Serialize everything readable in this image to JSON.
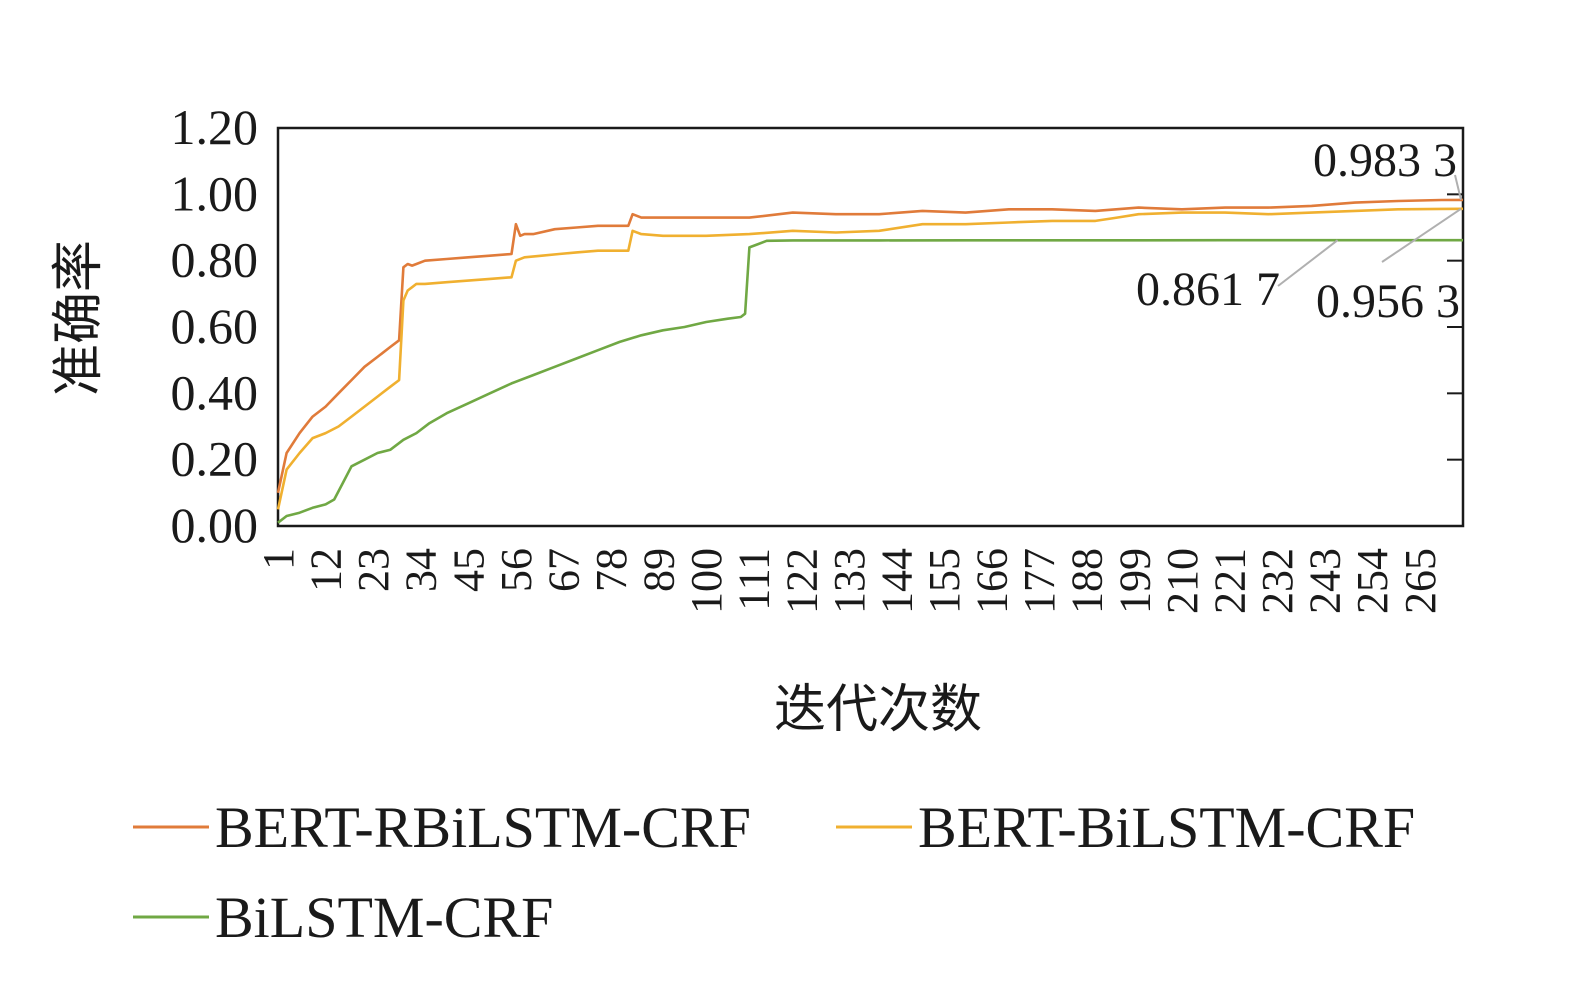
{
  "chart_data": {
    "type": "line",
    "xlabel": "迭代次数",
    "ylabel": "准确率",
    "xlim": [
      1,
      275
    ],
    "ylim": [
      0,
      1.2
    ],
    "grid": false,
    "legend_position": "bottom",
    "y_ticks": [
      "0.00",
      "0.20",
      "0.40",
      "0.60",
      "0.80",
      "1.00",
      "1.20"
    ],
    "x_ticks": [
      "1",
      "12",
      "23",
      "34",
      "45",
      "56",
      "67",
      "78",
      "89",
      "100",
      "111",
      "122",
      "133",
      "144",
      "155",
      "166",
      "177",
      "188",
      "199",
      "210",
      "221",
      "232",
      "243",
      "254",
      "265"
    ],
    "series": [
      {
        "name": "BERT-RBiLSTM-CRF",
        "color": "#E07B3A",
        "points": [
          [
            1,
            0.1
          ],
          [
            3,
            0.22
          ],
          [
            6,
            0.28
          ],
          [
            9,
            0.33
          ],
          [
            12,
            0.36
          ],
          [
            15,
            0.4
          ],
          [
            18,
            0.44
          ],
          [
            21,
            0.48
          ],
          [
            24,
            0.51
          ],
          [
            27,
            0.54
          ],
          [
            29,
            0.56
          ],
          [
            30,
            0.78
          ],
          [
            31,
            0.79
          ],
          [
            32,
            0.785
          ],
          [
            33,
            0.79
          ],
          [
            35,
            0.8
          ],
          [
            40,
            0.805
          ],
          [
            45,
            0.81
          ],
          [
            50,
            0.815
          ],
          [
            55,
            0.82
          ],
          [
            56,
            0.91
          ],
          [
            57,
            0.875
          ],
          [
            58,
            0.88
          ],
          [
            60,
            0.88
          ],
          [
            65,
            0.895
          ],
          [
            70,
            0.9
          ],
          [
            75,
            0.905
          ],
          [
            82,
            0.905
          ],
          [
            83,
            0.94
          ],
          [
            85,
            0.93
          ],
          [
            90,
            0.93
          ],
          [
            100,
            0.93
          ],
          [
            110,
            0.93
          ],
          [
            120,
            0.945
          ],
          [
            130,
            0.94
          ],
          [
            140,
            0.94
          ],
          [
            150,
            0.95
          ],
          [
            160,
            0.945
          ],
          [
            170,
            0.955
          ],
          [
            180,
            0.955
          ],
          [
            190,
            0.95
          ],
          [
            200,
            0.96
          ],
          [
            210,
            0.955
          ],
          [
            220,
            0.96
          ],
          [
            230,
            0.96
          ],
          [
            240,
            0.965
          ],
          [
            250,
            0.975
          ],
          [
            260,
            0.98
          ],
          [
            270,
            0.983
          ],
          [
            275,
            0.9833
          ]
        ]
      },
      {
        "name": "BERT-BiLSTM-CRF",
        "color": "#F0B030",
        "points": [
          [
            1,
            0.05
          ],
          [
            3,
            0.17
          ],
          [
            6,
            0.22
          ],
          [
            9,
            0.265
          ],
          [
            12,
            0.28
          ],
          [
            15,
            0.3
          ],
          [
            18,
            0.33
          ],
          [
            21,
            0.36
          ],
          [
            24,
            0.39
          ],
          [
            27,
            0.42
          ],
          [
            29,
            0.44
          ],
          [
            30,
            0.68
          ],
          [
            31,
            0.71
          ],
          [
            32,
            0.72
          ],
          [
            33,
            0.73
          ],
          [
            35,
            0.73
          ],
          [
            40,
            0.735
          ],
          [
            45,
            0.74
          ],
          [
            50,
            0.745
          ],
          [
            55,
            0.75
          ],
          [
            56,
            0.8
          ],
          [
            58,
            0.81
          ],
          [
            62,
            0.815
          ],
          [
            66,
            0.82
          ],
          [
            70,
            0.825
          ],
          [
            75,
            0.83
          ],
          [
            82,
            0.83
          ],
          [
            83,
            0.89
          ],
          [
            85,
            0.88
          ],
          [
            90,
            0.875
          ],
          [
            100,
            0.875
          ],
          [
            110,
            0.88
          ],
          [
            120,
            0.89
          ],
          [
            130,
            0.885
          ],
          [
            140,
            0.89
          ],
          [
            150,
            0.91
          ],
          [
            160,
            0.91
          ],
          [
            170,
            0.915
          ],
          [
            180,
            0.92
          ],
          [
            190,
            0.92
          ],
          [
            195,
            0.93
          ],
          [
            200,
            0.94
          ],
          [
            210,
            0.945
          ],
          [
            220,
            0.945
          ],
          [
            230,
            0.94
          ],
          [
            240,
            0.945
          ],
          [
            250,
            0.95
          ],
          [
            260,
            0.955
          ],
          [
            270,
            0.956
          ],
          [
            275,
            0.9563
          ]
        ]
      },
      {
        "name": "BiLSTM-CRF",
        "color": "#70A844",
        "points": [
          [
            1,
            0.01
          ],
          [
            3,
            0.03
          ],
          [
            6,
            0.04
          ],
          [
            9,
            0.055
          ],
          [
            12,
            0.065
          ],
          [
            14,
            0.08
          ],
          [
            16,
            0.13
          ],
          [
            18,
            0.18
          ],
          [
            21,
            0.2
          ],
          [
            24,
            0.22
          ],
          [
            27,
            0.23
          ],
          [
            30,
            0.26
          ],
          [
            33,
            0.28
          ],
          [
            36,
            0.31
          ],
          [
            40,
            0.34
          ],
          [
            45,
            0.37
          ],
          [
            50,
            0.4
          ],
          [
            55,
            0.43
          ],
          [
            60,
            0.455
          ],
          [
            65,
            0.48
          ],
          [
            70,
            0.505
          ],
          [
            75,
            0.53
          ],
          [
            80,
            0.555
          ],
          [
            85,
            0.575
          ],
          [
            90,
            0.59
          ],
          [
            95,
            0.6
          ],
          [
            100,
            0.615
          ],
          [
            105,
            0.625
          ],
          [
            108,
            0.63
          ],
          [
            109,
            0.64
          ],
          [
            110,
            0.84
          ],
          [
            112,
            0.85
          ],
          [
            114,
            0.86
          ],
          [
            120,
            0.861
          ],
          [
            140,
            0.861
          ],
          [
            160,
            0.8615
          ],
          [
            180,
            0.8615
          ],
          [
            200,
            0.8615
          ],
          [
            220,
            0.8617
          ],
          [
            240,
            0.8617
          ],
          [
            260,
            0.8617
          ],
          [
            275,
            0.8617
          ]
        ]
      }
    ],
    "annotations": [
      {
        "text": "0.983 3",
        "series": "BERT-RBiLSTM-CRF",
        "x": 275,
        "y": 0.9833
      },
      {
        "text": "0.861 7",
        "series": "BiLSTM-CRF",
        "x": 246,
        "y": 0.8617
      },
      {
        "text": "0.956 3",
        "series": "BERT-BiLSTM-CRF",
        "x": 275,
        "y": 0.9563
      }
    ]
  }
}
